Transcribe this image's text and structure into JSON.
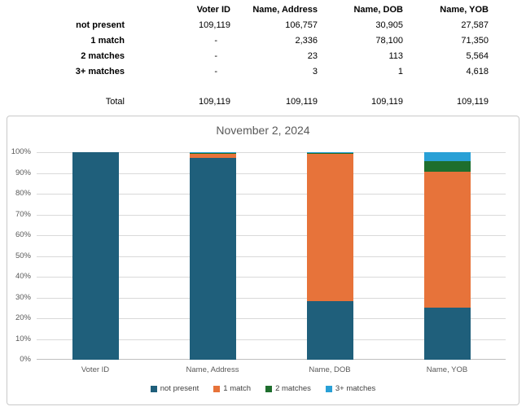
{
  "table": {
    "columns": [
      "Voter ID",
      "Name, Address",
      "Name, DOB",
      "Name, YOB"
    ],
    "rows": [
      {
        "label": "not present",
        "values": [
          "109,119",
          "106,757",
          "30,905",
          "27,587"
        ]
      },
      {
        "label": "1 match",
        "values": [
          "-",
          "2,336",
          "78,100",
          "71,350"
        ]
      },
      {
        "label": "2 matches",
        "values": [
          "-",
          "23",
          "113",
          "5,564"
        ]
      },
      {
        "label": "3+ matches",
        "values": [
          "-",
          "3",
          "1",
          "4,618"
        ]
      }
    ],
    "total": {
      "label": "Total",
      "values": [
        "109,119",
        "109,119",
        "109,119",
        "109,119"
      ]
    }
  },
  "chart_data": {
    "type": "bar",
    "stacked": true,
    "percent_stacked": true,
    "title": "November 2, 2024",
    "categories": [
      "Voter ID",
      "Name, Address",
      "Name, DOB",
      "Name, YOB"
    ],
    "series": [
      {
        "name": "not present",
        "color": "#1F5F7B",
        "counts": [
          109119,
          106757,
          30905,
          27587
        ],
        "values": [
          100,
          97.835,
          28.322,
          25.282
        ]
      },
      {
        "name": "1 match",
        "color": "#E7733A",
        "counts": [
          0,
          2336,
          78100,
          71350
        ],
        "values": [
          0,
          2.141,
          71.573,
          65.387
        ]
      },
      {
        "name": "2 matches",
        "color": "#1E6E2D",
        "counts": [
          0,
          23,
          113,
          5564
        ],
        "values": [
          0,
          0.021,
          0.104,
          5.099
        ]
      },
      {
        "name": "3+ matches",
        "color": "#29A0D6",
        "counts": [
          0,
          3,
          1,
          4618
        ],
        "values": [
          0,
          0.003,
          0.001,
          4.232
        ]
      }
    ],
    "total_per_category": 109119,
    "y_ticks": [
      "100%",
      "90%",
      "80%",
      "70%",
      "60%",
      "50%",
      "40%",
      "30%",
      "20%",
      "10%",
      "0%"
    ],
    "ylim": [
      0,
      100
    ],
    "grid": true,
    "legend_position": "bottom"
  }
}
